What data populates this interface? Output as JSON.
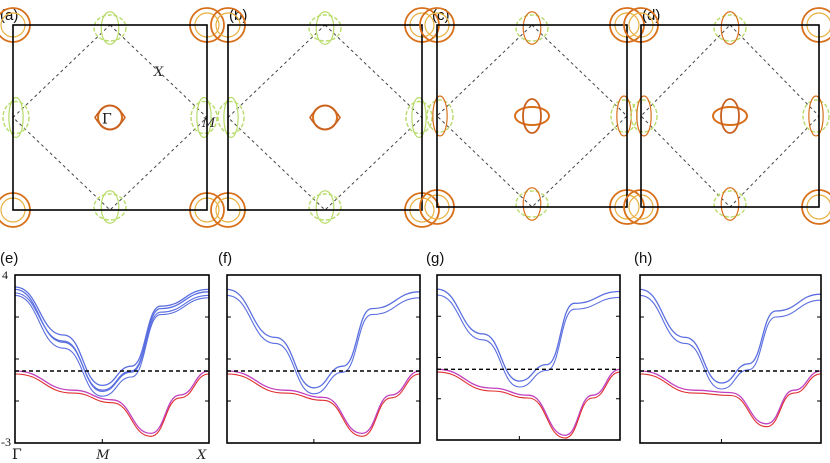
{
  "figure": {
    "fermi_panels": [
      {
        "label": "(a)",
        "variant": 0
      },
      {
        "label": "(b)",
        "variant": 1
      },
      {
        "label": "(c)",
        "variant": 2
      },
      {
        "label": "(d)",
        "variant": 3
      }
    ],
    "band_panels": [
      {
        "label": "(e)",
        "variant": 0
      },
      {
        "label": "(f)",
        "variant": 1
      },
      {
        "label": "(g)",
        "variant": 2
      },
      {
        "label": "(h)",
        "variant": 3
      }
    ],
    "annotations": {
      "gamma": "Γ",
      "X": "X",
      "M": "M"
    },
    "band_axes": {
      "y_max_label": "4",
      "y_min_label": "-3",
      "x_labels": [
        "Γ",
        "M",
        "X"
      ]
    },
    "colors": {
      "upper_band": "#5b6fe0",
      "lower_band_red": "#e03030",
      "lower_band_magenta": "#c040c0",
      "fs_orange": "#d8701a",
      "fs_light": "#b8dc6a",
      "fermi_level": "#000000"
    }
  },
  "chart_data": [
    {
      "type": "line",
      "title": "",
      "xlabel": "",
      "ylabel": "",
      "x_ticks": [
        "Γ",
        "M",
        "X"
      ],
      "ylim": [
        -3,
        4
      ],
      "fermi_level": 0,
      "note_series": "schematic band dispersions along Γ–M–X for panels (e)–(h)",
      "panels": [
        {
          "label": "(e)",
          "series": [
            {
              "x": [
                0,
                0.25,
                0.45,
                0.6,
                0.75,
                1.0
              ],
              "y": [
                3.5,
                1.5,
                -0.6,
                0.2,
                2.7,
                3.4
              ]
            },
            {
              "x": [
                0,
                0.25,
                0.45,
                0.6,
                0.75,
                1.0
              ],
              "y": [
                3.4,
                1.2,
                -0.8,
                0.0,
                2.6,
                3.3
              ]
            },
            {
              "x": [
                0,
                0.3,
                0.5,
                0.7,
                0.85,
                1.0
              ],
              "y": [
                0.0,
                -0.8,
                -1.2,
                -2.6,
                -1.0,
                0.0
              ]
            }
          ]
        },
        {
          "label": "(f)",
          "series": [
            {
              "x": [
                0,
                0.25,
                0.45,
                0.6,
                0.75,
                1.0
              ],
              "y": [
                3.4,
                1.4,
                -0.7,
                0.2,
                2.6,
                3.3
              ]
            },
            {
              "x": [
                0,
                0.3,
                0.5,
                0.7,
                0.85,
                1.0
              ],
              "y": [
                0.0,
                -0.8,
                -1.1,
                -2.6,
                -1.0,
                0.0
              ]
            }
          ]
        },
        {
          "label": "(g)",
          "series": [
            {
              "x": [
                0,
                0.25,
                0.45,
                0.6,
                0.75,
                1.0
              ],
              "y": [
                3.4,
                1.5,
                -0.5,
                0.2,
                2.8,
                3.3
              ]
            },
            {
              "x": [
                0,
                0.3,
                0.5,
                0.7,
                0.85,
                1.0
              ],
              "y": [
                0.0,
                -0.8,
                -1.1,
                -2.8,
                -1.1,
                0.0
              ]
            }
          ]
        },
        {
          "label": "(h)",
          "series": [
            {
              "x": [
                0,
                0.25,
                0.45,
                0.6,
                0.75,
                1.0
              ],
              "y": [
                3.4,
                1.4,
                -0.5,
                0.3,
                2.5,
                3.2
              ]
            },
            {
              "x": [
                0,
                0.3,
                0.5,
                0.7,
                0.85,
                1.0
              ],
              "y": [
                0.0,
                -0.8,
                -0.9,
                -2.2,
                -0.8,
                0.0
              ]
            }
          ]
        }
      ]
    }
  ]
}
